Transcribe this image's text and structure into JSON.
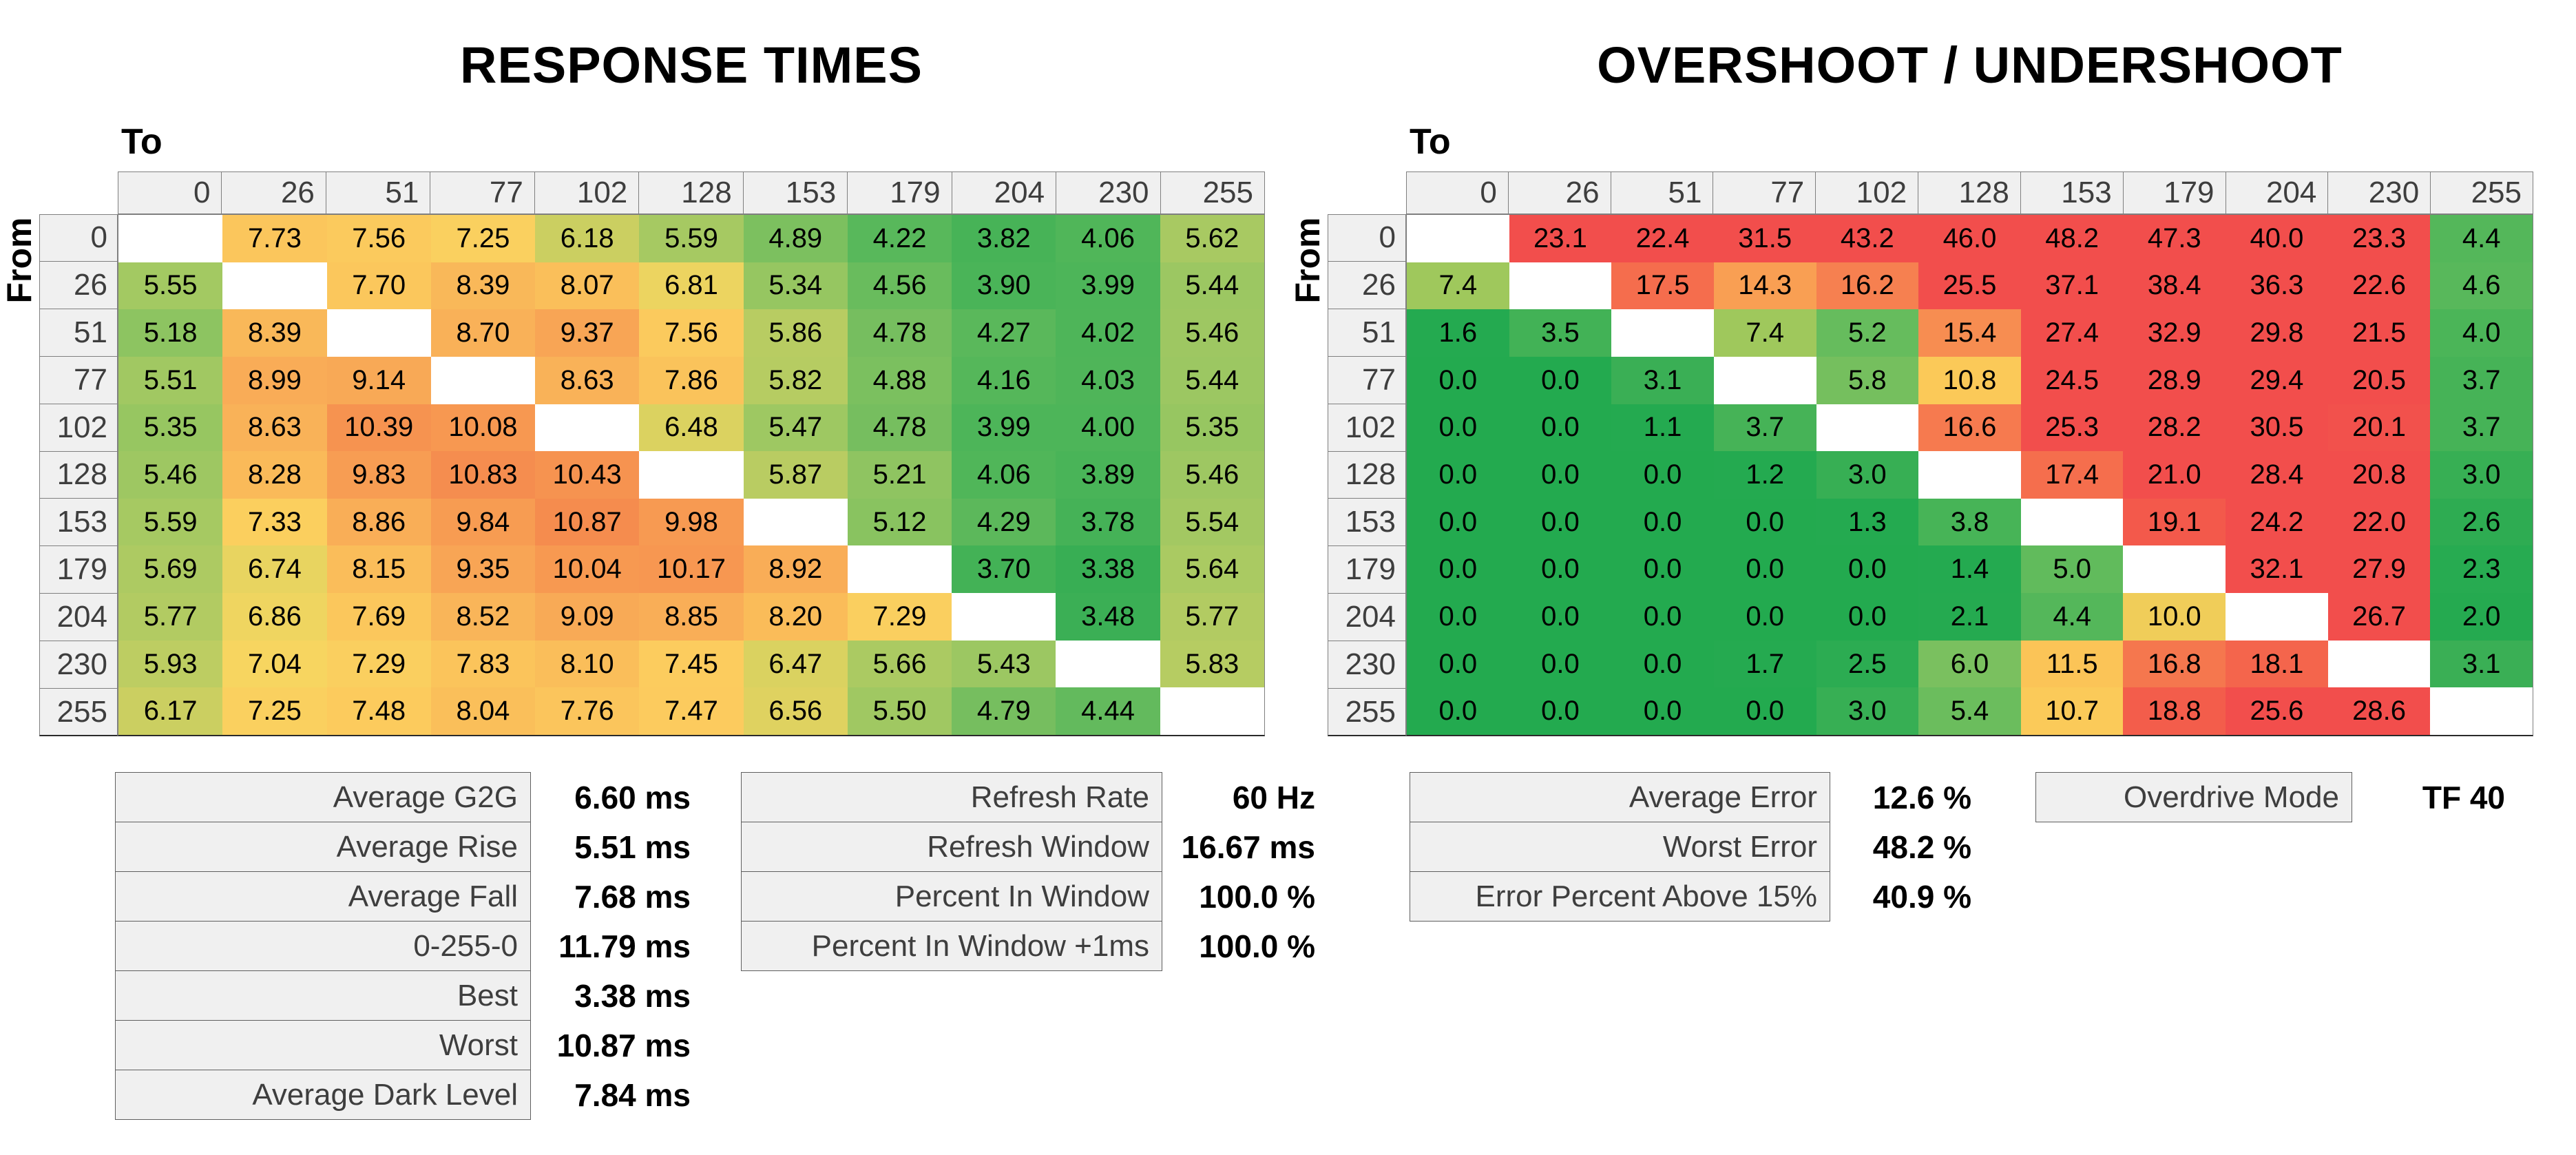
{
  "chart_data": [
    {
      "type": "heatmap",
      "title": "RESPONSE TIMES",
      "unit": "ms",
      "xlabel": "To",
      "ylabel": "From",
      "decimals": 2,
      "categories": [
        0,
        26,
        51,
        77,
        102,
        128,
        153,
        179,
        204,
        230,
        255
      ],
      "rows": [
        [
          null,
          7.73,
          7.56,
          7.25,
          6.18,
          5.59,
          4.89,
          4.22,
          3.82,
          4.06,
          5.62
        ],
        [
          5.55,
          null,
          7.7,
          8.39,
          8.07,
          6.81,
          5.34,
          4.56,
          3.9,
          3.99,
          5.44
        ],
        [
          5.18,
          8.39,
          null,
          8.7,
          9.37,
          7.56,
          5.86,
          4.78,
          4.27,
          4.02,
          5.46
        ],
        [
          5.51,
          8.99,
          9.14,
          null,
          8.63,
          7.86,
          5.82,
          4.88,
          4.16,
          4.03,
          5.44
        ],
        [
          5.35,
          8.63,
          10.39,
          10.08,
          null,
          6.48,
          5.47,
          4.78,
          3.99,
          4.0,
          5.35
        ],
        [
          5.46,
          8.28,
          9.83,
          10.83,
          10.43,
          null,
          5.87,
          5.21,
          4.06,
          3.89,
          5.46
        ],
        [
          5.59,
          7.33,
          8.86,
          9.84,
          10.87,
          9.98,
          null,
          5.12,
          4.29,
          3.78,
          5.54
        ],
        [
          5.69,
          6.74,
          8.15,
          9.35,
          10.04,
          10.17,
          8.92,
          null,
          3.7,
          3.38,
          5.64
        ],
        [
          5.77,
          6.86,
          7.69,
          8.52,
          9.09,
          8.85,
          8.2,
          7.29,
          null,
          3.48,
          5.77
        ],
        [
          5.93,
          7.04,
          7.29,
          7.83,
          8.1,
          7.45,
          6.47,
          5.66,
          5.43,
          null,
          5.83
        ],
        [
          6.17,
          7.25,
          7.48,
          8.04,
          7.76,
          7.47,
          6.56,
          5.5,
          4.79,
          4.44,
          null
        ]
      ],
      "color_scale": {
        "stops": [
          [
            3.3,
            "#35AD53"
          ],
          [
            4.0,
            "#4DB559"
          ],
          [
            4.5,
            "#66BB5D"
          ],
          [
            5.0,
            "#82C160"
          ],
          [
            5.5,
            "#A0C862"
          ],
          [
            6.0,
            "#C2CE62"
          ],
          [
            6.5,
            "#DCD260"
          ],
          [
            7.0,
            "#F6D660"
          ],
          [
            7.4,
            "#FCCD5E"
          ],
          [
            8.0,
            "#FAC05A"
          ],
          [
            8.7,
            "#F9B158"
          ],
          [
            9.4,
            "#F8A455"
          ],
          [
            10.1,
            "#F79851"
          ],
          [
            11.0,
            "#F58A4E"
          ]
        ]
      }
    },
    {
      "type": "heatmap",
      "title": "OVERSHOOT / UNDERSHOOT",
      "unit": "%",
      "xlabel": "To",
      "ylabel": "From",
      "decimals": 1,
      "categories": [
        0,
        26,
        51,
        77,
        102,
        128,
        153,
        179,
        204,
        230,
        255
      ],
      "rows": [
        [
          null,
          23.1,
          22.4,
          31.5,
          43.2,
          46.0,
          48.2,
          47.3,
          40.0,
          23.3,
          4.4
        ],
        [
          7.4,
          null,
          17.5,
          14.3,
          16.2,
          25.5,
          37.1,
          38.4,
          36.3,
          22.6,
          4.6
        ],
        [
          1.6,
          3.5,
          null,
          7.4,
          5.2,
          15.4,
          27.4,
          32.9,
          29.8,
          21.5,
          4.0
        ],
        [
          0.0,
          0.0,
          3.1,
          null,
          5.8,
          10.8,
          24.5,
          28.9,
          29.4,
          20.5,
          3.7
        ],
        [
          0.0,
          0.0,
          1.1,
          3.7,
          null,
          16.6,
          25.3,
          28.2,
          30.5,
          20.1,
          3.7
        ],
        [
          0.0,
          0.0,
          0.0,
          1.2,
          3.0,
          null,
          17.4,
          21.0,
          28.4,
          20.8,
          3.0
        ],
        [
          0.0,
          0.0,
          0.0,
          0.0,
          1.3,
          3.8,
          null,
          19.1,
          24.2,
          22.0,
          2.6
        ],
        [
          0.0,
          0.0,
          0.0,
          0.0,
          0.0,
          1.4,
          5.0,
          null,
          32.1,
          27.9,
          2.3
        ],
        [
          0.0,
          0.0,
          0.0,
          0.0,
          0.0,
          2.1,
          4.4,
          10.0,
          null,
          26.7,
          2.0
        ],
        [
          0.0,
          0.0,
          0.0,
          1.7,
          2.5,
          6.0,
          11.5,
          16.8,
          18.1,
          null,
          3.1
        ],
        [
          0.0,
          0.0,
          0.0,
          0.0,
          3.0,
          5.4,
          10.7,
          18.8,
          25.6,
          28.6,
          null
        ]
      ],
      "color_scale": {
        "stops": [
          [
            0.0,
            "#23AA4F"
          ],
          [
            2.2,
            "#25AA50"
          ],
          [
            3.2,
            "#3CB055"
          ],
          [
            4.2,
            "#4FB659"
          ],
          [
            5.2,
            "#66BC5D"
          ],
          [
            6.2,
            "#7FC15F"
          ],
          [
            7.5,
            "#A2C95C"
          ],
          [
            9.0,
            "#D5CF5A"
          ],
          [
            10.4,
            "#FBCC59"
          ],
          [
            11.6,
            "#FBC357"
          ],
          [
            13.0,
            "#FAAE56"
          ],
          [
            14.5,
            "#F99D53"
          ],
          [
            16.0,
            "#F68350"
          ],
          [
            17.5,
            "#F56D4D"
          ],
          [
            19.0,
            "#F35A4B"
          ],
          [
            20.5,
            "#F24E4C"
          ]
        ]
      }
    }
  ],
  "summaries": {
    "response": {
      "rows": [
        {
          "label": "Average G2G",
          "value": "6.60 ms"
        },
        {
          "label": "Average Rise",
          "value": "5.51 ms"
        },
        {
          "label": "Average Fall",
          "value": "7.68 ms"
        },
        {
          "label": "0-255-0",
          "value": "11.79 ms"
        },
        {
          "label": "Best",
          "value": "3.38 ms"
        },
        {
          "label": "Worst",
          "value": "10.87 ms"
        },
        {
          "label": "Average Dark Level",
          "value": "7.84 ms"
        }
      ]
    },
    "refresh": {
      "rows": [
        {
          "label": "Refresh Rate",
          "value": "60 Hz"
        },
        {
          "label": "Refresh Window",
          "value": "16.67 ms"
        },
        {
          "label": "Percent In Window",
          "value": "100.0 %"
        },
        {
          "label": "Percent In Window +1ms",
          "value": "100.0 %"
        }
      ]
    },
    "error": {
      "rows": [
        {
          "label": "Average Error",
          "value": "12.6 %"
        },
        {
          "label": "Worst Error",
          "value": "48.2 %"
        },
        {
          "label": "Error Percent Above 15%",
          "value": "40.9 %"
        }
      ]
    },
    "overdrive": {
      "rows": [
        {
          "label": "Overdrive Mode",
          "value": "TF 40"
        }
      ]
    }
  },
  "colors": {
    "header_bg": "#F0F0F0",
    "header_text": "#3E3E3E",
    "grid_border": "#7F7F7F",
    "green_min": "#23AA4F",
    "yellow_mid": "#FBCC59",
    "red_max": "#F24E4C"
  }
}
